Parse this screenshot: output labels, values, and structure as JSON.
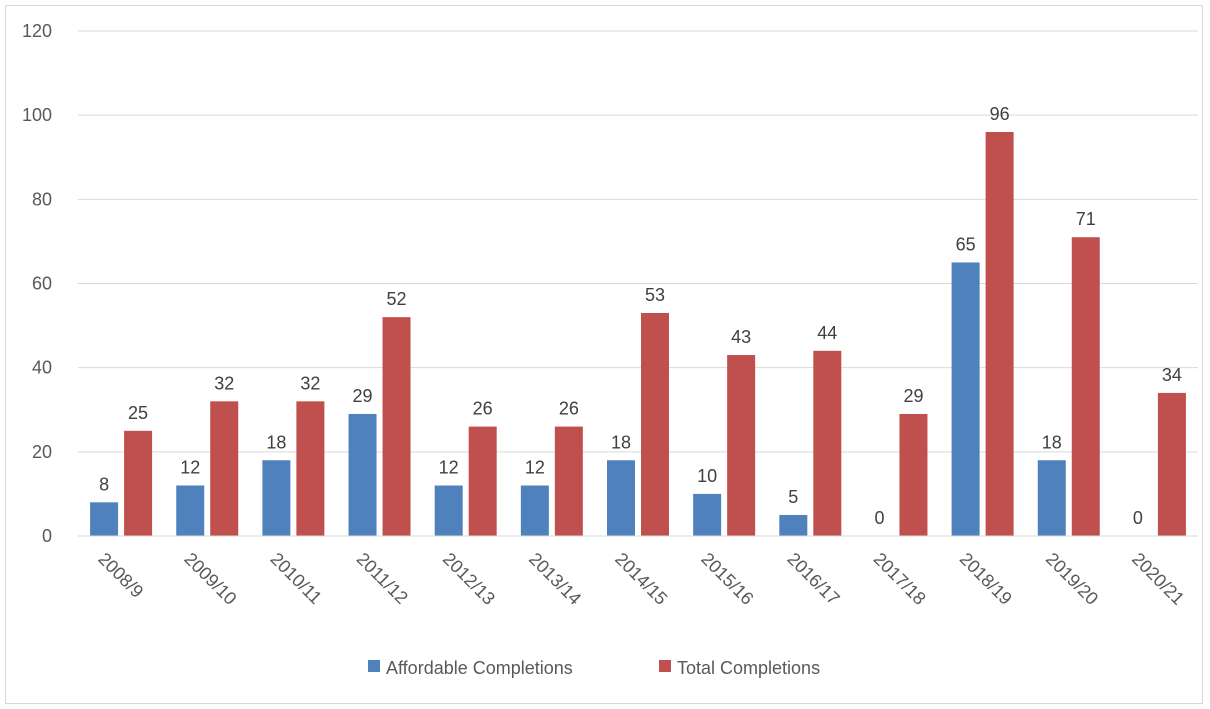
{
  "chart_data": {
    "type": "bar",
    "title": "",
    "xlabel": "",
    "ylabel": "",
    "ylim": [
      0,
      120
    ],
    "yticks": [
      0,
      20,
      40,
      60,
      80,
      100,
      120
    ],
    "grid": true,
    "legend_position": "bottom",
    "categories": [
      "2008/9",
      "2009/10",
      "2010/11",
      "2011/12",
      "2012/13",
      "2013/14",
      "2014/15",
      "2015/16",
      "2016/17",
      "2017/18",
      "2018/19",
      "2019/20",
      "2020/21"
    ],
    "series": [
      {
        "name": "Affordable Completions",
        "color": "#4f81bd",
        "values": [
          8,
          12,
          18,
          29,
          12,
          12,
          18,
          10,
          5,
          0,
          65,
          18,
          0
        ]
      },
      {
        "name": "Total Completions",
        "color": "#c0504d",
        "values": [
          25,
          32,
          32,
          52,
          26,
          26,
          53,
          43,
          44,
          29,
          96,
          71,
          34
        ]
      }
    ]
  }
}
